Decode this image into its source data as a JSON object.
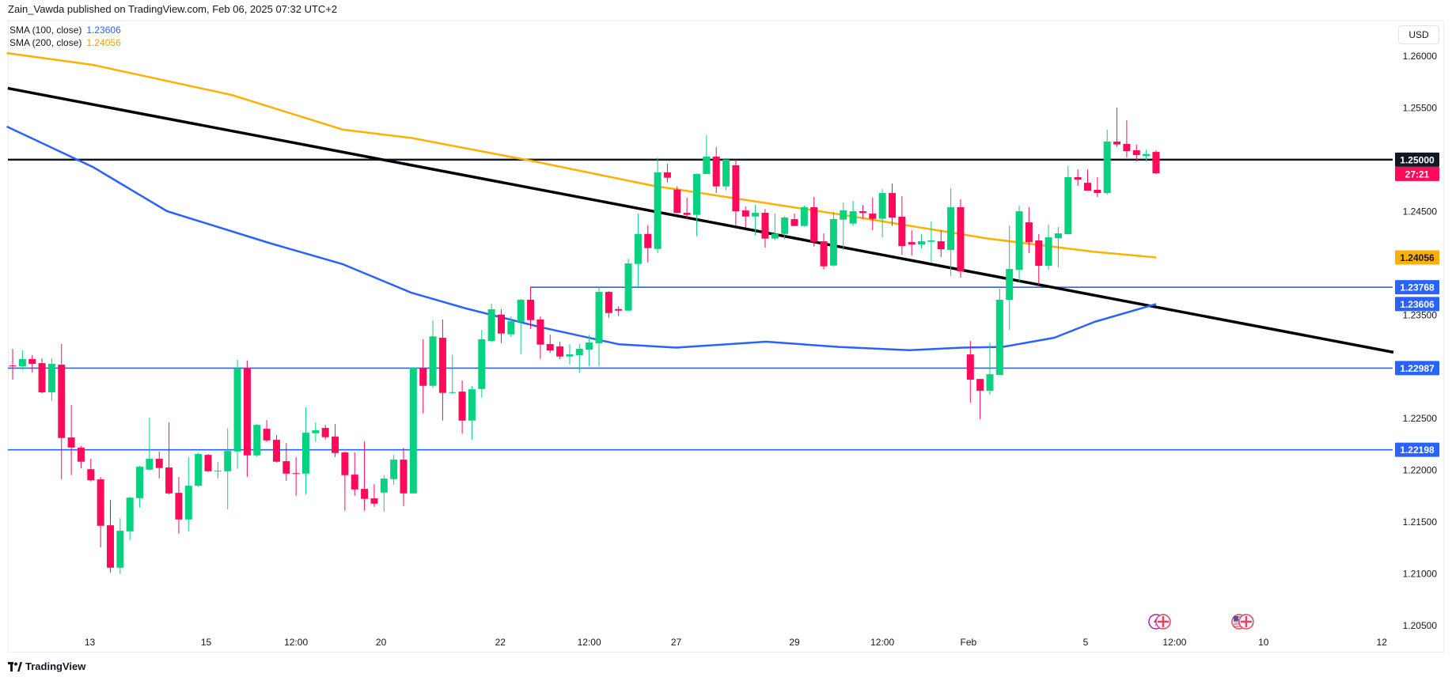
{
  "header": {
    "publisher": "Zain_Vawda published on TradingView.com, Feb 06, 2025 07:32 UTC+2"
  },
  "legend": [
    {
      "label": "SMA (100, close)",
      "value": "1.23606",
      "color": "#2962ff"
    },
    {
      "label": "SMA (200, close)",
      "value": "1.24056",
      "color": "#ffb000"
    }
  ],
  "currency": "USD",
  "logo": "TradingView",
  "colors": {
    "up": "#08d27f",
    "down": "#ff0a5a",
    "sma100": "#2962ff",
    "sma200": "#ffb000",
    "level": "#2962ff",
    "resistance": "#131722",
    "trendline": "#000000"
  },
  "chart_data": {
    "type": "candlestick",
    "symbol_quote": "USD",
    "ylim": [
      1.2025,
      1.2635
    ],
    "y_ticks": [
      "1.26000",
      "1.25500",
      "1.24500",
      "1.23500",
      "1.22500",
      "1.22000",
      "1.21500",
      "1.21000",
      "1.20500"
    ],
    "x_ticks": [
      {
        "bar": 8.9,
        "label": "13"
      },
      {
        "bar": 20.8,
        "label": "15"
      },
      {
        "bar": 30,
        "label": "12:00"
      },
      {
        "bar": 38.7,
        "label": "20"
      },
      {
        "bar": 50.9,
        "label": "22"
      },
      {
        "bar": 60,
        "label": "12:00"
      },
      {
        "bar": 68.9,
        "label": "27"
      },
      {
        "bar": 81,
        "label": "29"
      },
      {
        "bar": 90,
        "label": "12:00"
      },
      {
        "bar": 98.8,
        "label": "Feb"
      },
      {
        "bar": 110.8,
        "label": "5"
      },
      {
        "bar": 119.9,
        "label": "12:00"
      },
      {
        "bar": 129,
        "label": "10"
      },
      {
        "bar": 141.1,
        "label": "12"
      }
    ],
    "candles_ohlc": [
      [
        1.23012,
        1.23173,
        1.22877,
        1.2301
      ],
      [
        1.23005,
        1.23158,
        1.22972,
        1.23074
      ],
      [
        1.23074,
        1.23112,
        1.22946,
        1.23028
      ],
      [
        1.23035,
        1.23081,
        1.22745,
        1.22753
      ],
      [
        1.22753,
        1.23081,
        1.22669,
        1.23028
      ],
      [
        1.2302,
        1.23219,
        1.21912,
        1.22312
      ],
      [
        1.22317,
        1.2263,
        1.21953,
        1.2222
      ],
      [
        1.22218,
        1.22233,
        1.22019,
        1.22083
      ],
      [
        1.22011,
        1.22111,
        1.21892,
        1.21904
      ],
      [
        1.21912,
        1.21935,
        1.21255,
        1.21464
      ],
      [
        1.21469,
        1.21713,
        1.21013,
        1.21059
      ],
      [
        1.21059,
        1.21538,
        1.20998,
        1.21416
      ],
      [
        1.2141,
        1.21744,
        1.21326,
        1.21736
      ],
      [
        1.21731,
        1.22042,
        1.2164,
        1.22034
      ],
      [
        1.22006,
        1.22508,
        1.21999,
        1.22111
      ],
      [
        1.22111,
        1.2218,
        1.21922,
        1.22022
      ],
      [
        1.22027,
        1.22462,
        1.21767,
        1.21777
      ],
      [
        1.21782,
        1.21935,
        1.21387,
        1.21525
      ],
      [
        1.21525,
        1.22126,
        1.2141,
        1.21851
      ],
      [
        1.21851,
        1.22169,
        1.21838,
        1.22157
      ],
      [
        1.22149,
        1.22157,
        1.21983,
        1.21991
      ],
      [
        1.21992,
        1.2208,
        1.21922,
        1.21996
      ],
      [
        1.21991,
        1.22406,
        1.21624,
        1.22187
      ],
      [
        1.22182,
        1.23066,
        1.22014,
        1.22985
      ],
      [
        1.22985,
        1.23058,
        1.21938,
        1.22144
      ],
      [
        1.22144,
        1.2245,
        1.22129,
        1.22439
      ],
      [
        1.22401,
        1.22485,
        1.22274,
        1.22289
      ],
      [
        1.22294,
        1.2234,
        1.22075,
        1.22083
      ],
      [
        1.22088,
        1.22264,
        1.21899,
        1.21968
      ],
      [
        1.21972,
        1.22126,
        1.21754,
        1.2197
      ],
      [
        1.21968,
        1.22607,
        1.21769,
        1.22363
      ],
      [
        1.22358,
        1.22462,
        1.22274,
        1.22386
      ],
      [
        1.22409,
        1.22439,
        1.22297,
        1.2232
      ],
      [
        1.22325,
        1.22447,
        1.22129,
        1.22167
      ],
      [
        1.22172,
        1.2218,
        1.21609,
        1.21953
      ],
      [
        1.21958,
        1.22172,
        1.21754,
        1.21815
      ],
      [
        1.2182,
        1.22279,
        1.21609,
        1.21724
      ],
      [
        1.21729,
        1.21866,
        1.21647,
        1.21678
      ],
      [
        1.21785,
        1.2195,
        1.21601,
        1.2192
      ],
      [
        1.21915,
        1.22149,
        1.21861,
        1.22103
      ],
      [
        1.22103,
        1.22218,
        1.21655,
        1.21777
      ],
      [
        1.21777,
        1.22997,
        1.21772,
        1.2299
      ],
      [
        1.2299,
        1.23265,
        1.22549,
        1.22816
      ],
      [
        1.22816,
        1.23448,
        1.22793,
        1.23293
      ],
      [
        1.2328,
        1.23456,
        1.2248,
        1.22748
      ],
      [
        1.2275,
        1.23117,
        1.22735,
        1.22755
      ],
      [
        1.2276,
        1.22867,
        1.22353,
        1.2248
      ],
      [
        1.2248,
        1.22814,
        1.22297,
        1.22783
      ],
      [
        1.22786,
        1.23356,
        1.22702,
        1.23265
      ],
      [
        1.23249,
        1.23608,
        1.23237,
        1.23555
      ],
      [
        1.23504,
        1.23555,
        1.23229,
        1.23321
      ],
      [
        1.23313,
        1.23486,
        1.23288,
        1.2344
      ],
      [
        1.23435,
        1.23654,
        1.23122,
        1.23647
      ],
      [
        1.23647,
        1.23772,
        1.23366,
        1.23451
      ],
      [
        1.23456,
        1.23486,
        1.23076,
        1.23214
      ],
      [
        1.23219,
        1.2331,
        1.23135,
        1.23158
      ],
      [
        1.23196,
        1.23242,
        1.23074,
        1.23099
      ],
      [
        1.23099,
        1.23219,
        1.2302,
        1.2312
      ],
      [
        1.23112,
        1.23219,
        1.22939,
        1.23173
      ],
      [
        1.23165,
        1.23308,
        1.23007,
        1.23234
      ],
      [
        1.23226,
        1.23766,
        1.23007,
        1.23723
      ],
      [
        1.23723,
        1.23733,
        1.23473,
        1.23519
      ],
      [
        1.23557,
        1.23585,
        1.23489,
        1.23542
      ],
      [
        1.23542,
        1.24044,
        1.23542,
        1.23998
      ],
      [
        1.23993,
        1.2448,
        1.23772,
        1.24283
      ],
      [
        1.24283,
        1.24367,
        1.24008,
        1.24146
      ],
      [
        1.24138,
        1.25019,
        1.24097,
        1.24877
      ],
      [
        1.24877,
        1.24961,
        1.2478,
        1.24826
      ],
      [
        1.24711,
        1.24744,
        1.2448,
        1.24487
      ],
      [
        1.24487,
        1.24632,
        1.24426,
        1.24467
      ],
      [
        1.24467,
        1.24867,
        1.2426,
        1.24862
      ],
      [
        1.24862,
        1.25236,
        1.24862,
        1.2503
      ],
      [
        1.2503,
        1.25121,
        1.24678,
        1.24742
      ],
      [
        1.24742,
        1.25002,
        1.24704,
        1.25002
      ],
      [
        1.24946,
        1.24999,
        1.24367,
        1.24502
      ],
      [
        1.2451,
        1.24548,
        1.24345,
        1.24451
      ],
      [
        1.24451,
        1.24563,
        1.24268,
        1.24487
      ],
      [
        1.24487,
        1.24523,
        1.24151,
        1.24238
      ],
      [
        1.24238,
        1.2448,
        1.24222,
        1.24286
      ],
      [
        1.24283,
        1.24454,
        1.2423,
        1.24441
      ],
      [
        1.24426,
        1.2448,
        1.24357,
        1.2436
      ],
      [
        1.2436,
        1.24556,
        1.24352,
        1.24541
      ],
      [
        1.24541,
        1.2464,
        1.24161,
        1.24207
      ],
      [
        1.24212,
        1.24288,
        1.2394,
        1.2397
      ],
      [
        1.23978,
        1.24495,
        1.2397,
        1.24426
      ],
      [
        1.24421,
        1.24586,
        1.24128,
        1.2451
      ],
      [
        1.24383,
        1.24602,
        1.2436,
        1.24502
      ],
      [
        1.24502,
        1.24563,
        1.24429,
        1.24485
      ],
      [
        1.24479,
        1.24632,
        1.24319,
        1.24429
      ],
      [
        1.24429,
        1.24716,
        1.2425,
        1.24678
      ],
      [
        1.24678,
        1.2477,
        1.2436,
        1.24441
      ],
      [
        1.24449,
        1.24648,
        1.24082,
        1.24166
      ],
      [
        1.24204,
        1.24319,
        1.24074,
        1.24181
      ],
      [
        1.24181,
        1.24281,
        1.24143,
        1.24212
      ],
      [
        1.24207,
        1.24403,
        1.24013,
        1.2422
      ],
      [
        1.24212,
        1.24319,
        1.24059,
        1.24136
      ],
      [
        1.24128,
        1.24724,
        1.23876,
        1.24541
      ],
      [
        1.24541,
        1.24617,
        1.23861,
        1.23922
      ],
      [
        1.23119,
        1.23249,
        1.22653,
        1.22875
      ],
      [
        1.22882,
        1.22882,
        1.22493,
        1.22768
      ],
      [
        1.22768,
        1.23234,
        1.2273,
        1.22928
      ],
      [
        1.2292,
        1.23754,
        1.2292,
        1.23647
      ],
      [
        1.23647,
        1.24365,
        1.23356,
        1.23944
      ],
      [
        1.23937,
        1.24556,
        1.23822,
        1.24502
      ],
      [
        1.24395,
        1.24541,
        1.24097,
        1.24204
      ],
      [
        1.2422,
        1.24281,
        1.23792,
        1.23975
      ],
      [
        1.23975,
        1.24372,
        1.23937,
        1.2425
      ],
      [
        1.24243,
        1.2435,
        1.2396,
        1.24288
      ],
      [
        1.24281,
        1.24938,
        1.24281,
        1.24831
      ],
      [
        1.24831,
        1.24907,
        1.24747,
        1.24808
      ],
      [
        1.24777,
        1.24907,
        1.24701,
        1.24701
      ],
      [
        1.24709,
        1.24831,
        1.2464,
        1.24678
      ],
      [
        1.24678,
        1.25289,
        1.24663,
        1.25175
      ],
      [
        1.25175,
        1.25503,
        1.25124,
        1.25147
      ],
      [
        1.25152,
        1.25381,
        1.25022,
        1.25083
      ],
      [
        1.25091,
        1.25144,
        1.24984,
        1.25045
      ],
      [
        1.25035,
        1.25098,
        1.24984,
        1.25055
      ],
      [
        1.25075,
        1.25091,
        1.24862,
        1.24869
      ]
    ],
    "sma100": [
      [
        0.4,
        1.2532
      ],
      [
        9.2,
        1.2493
      ],
      [
        16.8,
        1.24503
      ],
      [
        27.2,
        1.24197
      ],
      [
        34.8,
        1.2399
      ],
      [
        41.8,
        1.23715
      ],
      [
        47.4,
        1.23563
      ],
      [
        54.9,
        1.23385
      ],
      [
        63,
        1.23218
      ],
      [
        68.9,
        1.23185
      ],
      [
        78.1,
        1.23242
      ],
      [
        85.5,
        1.23192
      ],
      [
        92.8,
        1.2316
      ],
      [
        98.2,
        1.23185
      ],
      [
        102.3,
        1.23192
      ],
      [
        107.6,
        1.2328
      ],
      [
        111.7,
        1.23433
      ],
      [
        118,
        1.23606
      ]
    ],
    "sma200": [
      [
        0.4,
        1.2603
      ],
      [
        9.2,
        1.25916
      ],
      [
        23.4,
        1.25626
      ],
      [
        34.8,
        1.2529
      ],
      [
        41.8,
        1.2521
      ],
      [
        53.5,
        1.25
      ],
      [
        66.6,
        1.24747
      ],
      [
        85.5,
        1.24474
      ],
      [
        100.9,
        1.24237
      ],
      [
        111.7,
        1.2411
      ],
      [
        118,
        1.24056
      ]
    ],
    "trendline": [
      [
        0.5,
        1.2569
      ],
      [
        142.3,
        1.2314
      ]
    ],
    "horizontal_levels": [
      {
        "price": 1.25,
        "label": "1.25000",
        "from_bar": 0.5,
        "kind": "resistance"
      },
      {
        "price": 1.23768,
        "label": "1.23768",
        "from_bar": 54,
        "kind": "level"
      },
      {
        "price": 1.22987,
        "label": "1.22987",
        "from_bar": 0.5,
        "kind": "level"
      },
      {
        "price": 1.22198,
        "label": "1.22198",
        "from_bar": 0.5,
        "kind": "level"
      }
    ],
    "price_badges": [
      {
        "price": 1.25,
        "label": "1.25000",
        "bg": "#131722",
        "fg": "#ffffff"
      },
      {
        "price": 1.24056,
        "label": "1.24056",
        "bg": "#ffb000",
        "fg": "#131722"
      },
      {
        "price": 1.23768,
        "label": "1.23768",
        "bg": "#2962ff",
        "fg": "#ffffff"
      },
      {
        "price": 1.23606,
        "label": "1.23606",
        "bg": "#2962ff",
        "fg": "#ffffff"
      },
      {
        "price": 1.22987,
        "label": "1.22987",
        "bg": "#2962ff",
        "fg": "#ffffff"
      },
      {
        "price": 1.22198,
        "label": "1.22198",
        "bg": "#2962ff",
        "fg": "#ffffff"
      }
    ],
    "countdown": {
      "label": "27:21",
      "bg": "#ff0a5a"
    },
    "events": [
      {
        "bar": 118,
        "icons": [
          "lightning-icon",
          "uk-flag-icon"
        ]
      },
      {
        "bar": 126.5,
        "icons": [
          "us-flag-icon",
          "uk-flag-icon"
        ]
      }
    ]
  }
}
